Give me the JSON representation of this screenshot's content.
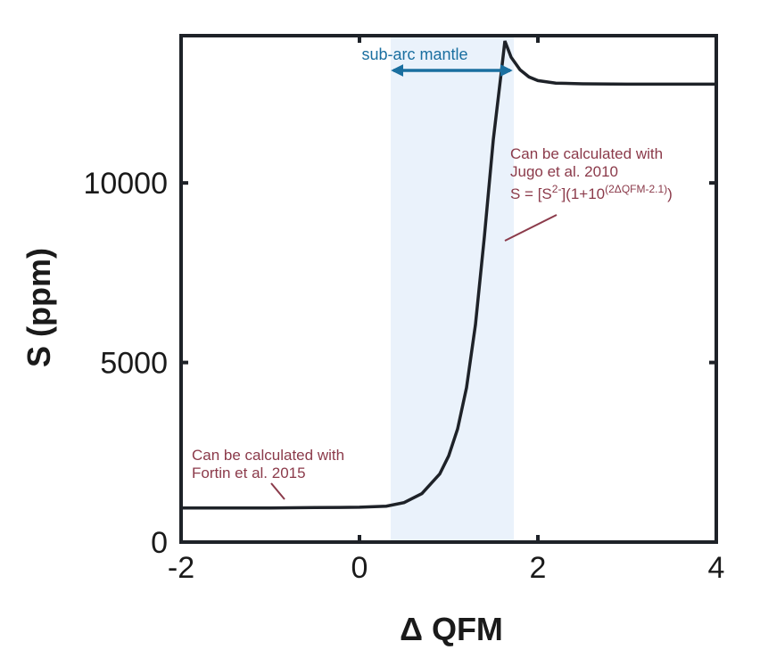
{
  "chart_data": {
    "type": "line",
    "xlabel": "Δ QFM",
    "ylabel": "S (ppm)",
    "xlim": [
      -2,
      4
    ],
    "ylim": [
      0,
      14100
    ],
    "x_ticks": [
      -2,
      0,
      2,
      4
    ],
    "y_ticks": [
      0,
      5000,
      10000
    ],
    "x_tick_labels": [
      "-2",
      "0",
      "2",
      "4"
    ],
    "y_tick_labels": [
      "0",
      "5000",
      "10000"
    ],
    "grid": false,
    "series": [
      {
        "x": [
          -2,
          -1.5,
          -1,
          -0.5,
          0,
          0.3,
          0.5,
          0.7,
          0.9,
          1.0,
          1.1,
          1.2,
          1.3,
          1.4,
          1.5,
          1.6,
          1.63,
          1.7,
          1.8,
          1.9,
          2.0,
          2.2,
          2.5,
          3.0,
          3.5,
          4.0
        ],
        "y": [
          950,
          950,
          950,
          960,
          970,
          1000,
          1100,
          1350,
          1900,
          2400,
          3150,
          4300,
          6050,
          8500,
          11200,
          13300,
          13950,
          13500,
          13150,
          12950,
          12850,
          12780,
          12760,
          12750,
          12750,
          12750
        ]
      }
    ],
    "band": {
      "x": [
        0.35,
        1.73
      ],
      "color": "#eaf2fb"
    },
    "band_label": "sub-arc mantle",
    "annotations": {
      "high": {
        "line1": "Can be calculated with",
        "line2": "Jugo et al. 2010",
        "eq_prefix": "S = [S",
        "eq_sup1": "2-",
        "eq_mid": "](1+10",
        "eq_sup2": "(2ΔQFM-2.1)",
        "eq_suffix": ")"
      },
      "low": {
        "line1": "Can be calculated with",
        "line2": "Fortin et al. 2015"
      }
    },
    "colors": {
      "curve": "#1e2228",
      "annotation": "#8b3a4a",
      "band_arrow": "#1a6fa0",
      "band_fill": "#eaf2fb"
    }
  }
}
